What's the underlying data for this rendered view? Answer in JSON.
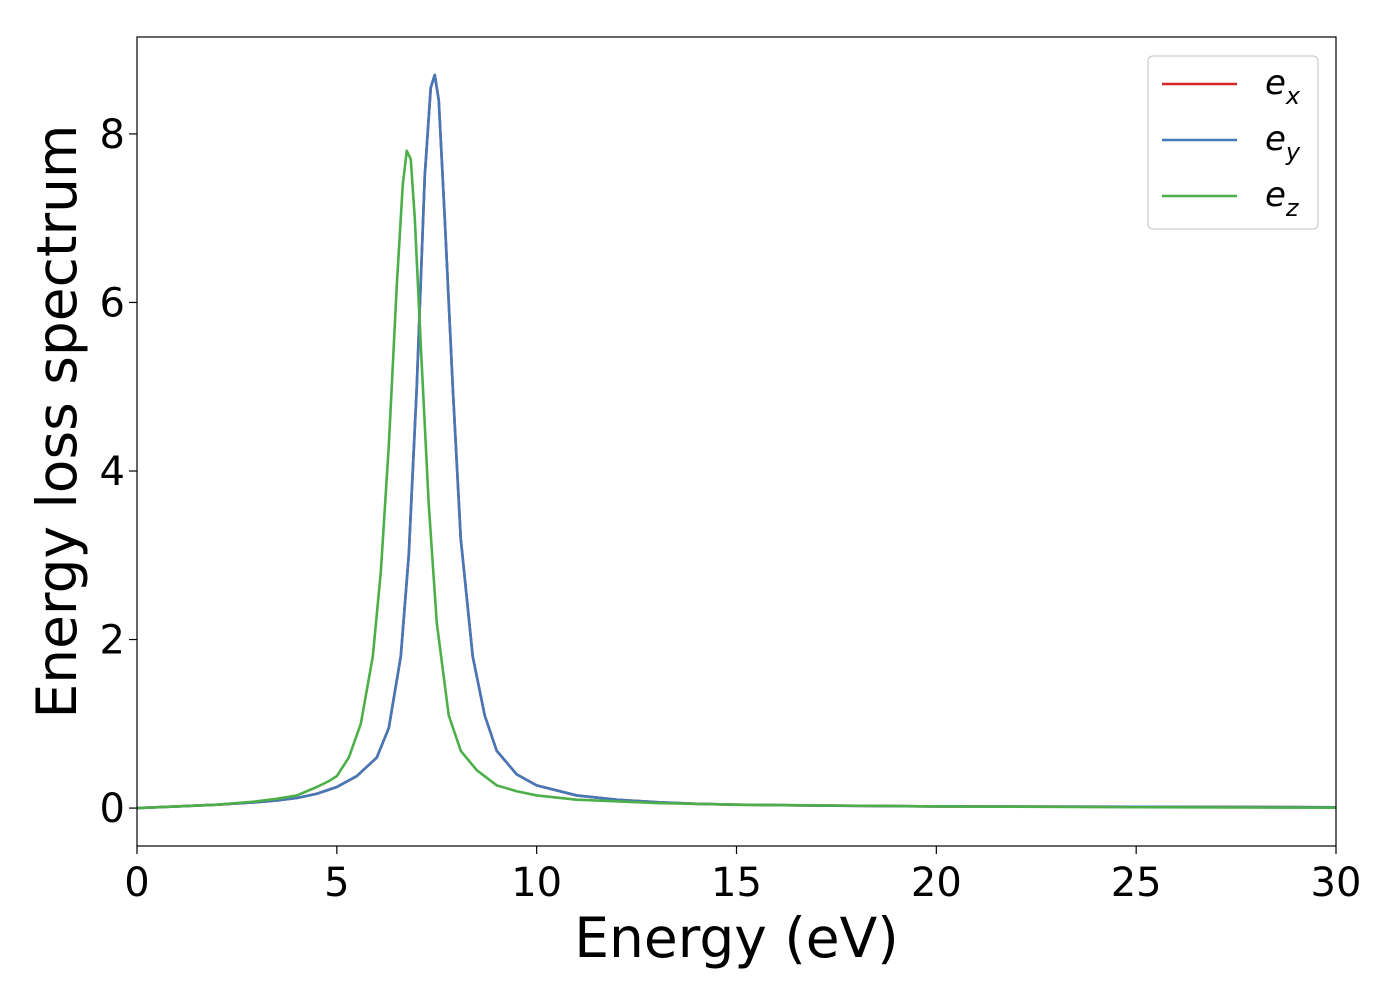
{
  "chart_data": {
    "type": "line",
    "title": "",
    "xlabel": "Energy (eV)",
    "ylabel": "Energy loss spectrum",
    "xlim": [
      0,
      30
    ],
    "ylim": [
      -0.45,
      9.15
    ],
    "xticks": [
      0,
      5,
      10,
      15,
      20,
      25,
      30
    ],
    "yticks": [
      0,
      2,
      4,
      6,
      8
    ],
    "xtick_labels": [
      "0",
      "5",
      "10",
      "15",
      "20",
      "25",
      "30"
    ],
    "ytick_labels": [
      "0",
      "2",
      "4",
      "6",
      "8"
    ],
    "grid": false,
    "legend_position": "top-right",
    "series": [
      {
        "name": "e_x",
        "legend_main": "e",
        "legend_sub": "x",
        "color": "#d62728",
        "x": [
          0,
          1,
          2,
          3,
          3.5,
          4,
          4.5,
          5,
          5.5,
          6,
          6.3,
          6.6,
          6.8,
          7.0,
          7.2,
          7.35,
          7.45,
          7.55,
          7.7,
          7.9,
          8.1,
          8.4,
          8.7,
          9.0,
          9.5,
          10,
          11,
          12,
          13,
          14,
          15,
          17,
          20,
          25,
          30
        ],
        "y": [
          0.0,
          0.02,
          0.04,
          0.07,
          0.09,
          0.12,
          0.17,
          0.25,
          0.38,
          0.6,
          0.95,
          1.8,
          3.0,
          5.0,
          7.5,
          8.55,
          8.7,
          8.4,
          7.0,
          5.0,
          3.2,
          1.8,
          1.1,
          0.68,
          0.4,
          0.27,
          0.15,
          0.1,
          0.07,
          0.05,
          0.04,
          0.03,
          0.02,
          0.015,
          0.01
        ]
      },
      {
        "name": "e_y",
        "legend_main": "e",
        "legend_sub": "y",
        "color": "#4478b8",
        "x": [
          0,
          1,
          2,
          3,
          3.5,
          4,
          4.5,
          5,
          5.5,
          6,
          6.3,
          6.6,
          6.8,
          7.0,
          7.2,
          7.35,
          7.45,
          7.55,
          7.7,
          7.9,
          8.1,
          8.4,
          8.7,
          9.0,
          9.5,
          10,
          11,
          12,
          13,
          14,
          15,
          17,
          20,
          25,
          30
        ],
        "y": [
          0.0,
          0.02,
          0.04,
          0.07,
          0.09,
          0.12,
          0.17,
          0.25,
          0.38,
          0.6,
          0.95,
          1.8,
          3.0,
          5.0,
          7.5,
          8.55,
          8.7,
          8.4,
          7.0,
          5.0,
          3.2,
          1.8,
          1.1,
          0.68,
          0.4,
          0.27,
          0.15,
          0.1,
          0.07,
          0.05,
          0.04,
          0.03,
          0.02,
          0.015,
          0.01
        ]
      },
      {
        "name": "e_z",
        "legend_main": "e",
        "legend_sub": "z",
        "color": "#4daf4a",
        "x": [
          0,
          1,
          2,
          3,
          3.5,
          4,
          4.5,
          4.8,
          5,
          5.3,
          5.6,
          5.9,
          6.1,
          6.3,
          6.5,
          6.65,
          6.75,
          6.85,
          6.95,
          7.1,
          7.3,
          7.5,
          7.8,
          8.1,
          8.5,
          9.0,
          9.5,
          10,
          11,
          12,
          13,
          15,
          20,
          25,
          30
        ],
        "y": [
          0.0,
          0.02,
          0.04,
          0.08,
          0.11,
          0.15,
          0.25,
          0.32,
          0.38,
          0.6,
          1.0,
          1.8,
          2.8,
          4.3,
          6.2,
          7.4,
          7.8,
          7.7,
          7.0,
          5.5,
          3.6,
          2.2,
          1.1,
          0.68,
          0.45,
          0.27,
          0.2,
          0.15,
          0.1,
          0.08,
          0.06,
          0.04,
          0.02,
          0.01,
          0.005
        ]
      }
    ]
  }
}
